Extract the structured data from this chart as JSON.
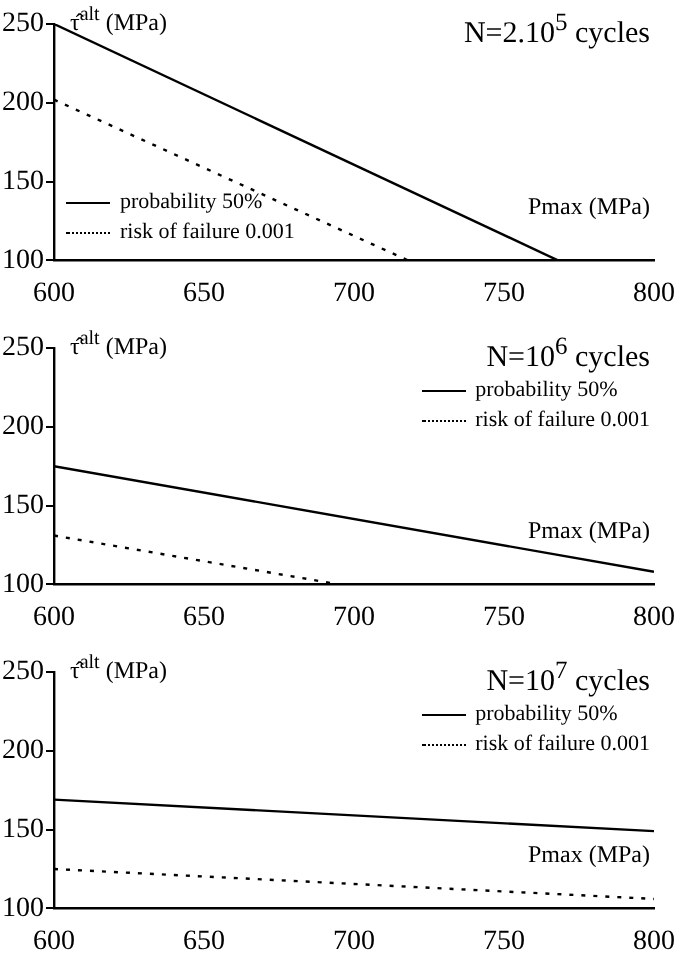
{
  "chart_data": [
    {
      "type": "line",
      "title": "N=2.10$^{5}$ cycles",
      "ylabel": "τ̂$^{alt}$ (MPa)",
      "xlabel": "Pmax (MPa)",
      "xlim": [
        600,
        800
      ],
      "xticks": [
        600,
        650,
        700,
        750,
        800
      ],
      "ylim": [
        100,
        250
      ],
      "yticks": [
        100,
        150,
        200,
        250
      ],
      "legend": "bottom left",
      "marker": "none",
      "series": [
        {
          "name": "probability 50%",
          "color": "#000000",
          "line_style": "solid",
          "x": [
            600,
            768
          ],
          "values": [
            250,
            100
          ]
        },
        {
          "name": "risk of failure 0.001",
          "color": "#000000",
          "line_style": "dotted",
          "x": [
            600,
            718
          ],
          "values": [
            202,
            100
          ]
        }
      ]
    },
    {
      "type": "line",
      "title": "N=10$^{6}$ cycles",
      "ylabel": "τ̂$^{alt}$ (MPa)",
      "xlabel": "Pmax (MPa)",
      "xlim": [
        600,
        800
      ],
      "xticks": [
        600,
        650,
        700,
        750,
        800
      ],
      "ylim": [
        100,
        250
      ],
      "yticks": [
        100,
        150,
        200,
        250
      ],
      "legend": "top right",
      "marker": "none",
      "series": [
        {
          "name": "probability 50%",
          "color": "#000000",
          "line_style": "solid",
          "x": [
            600,
            800
          ],
          "values": [
            175,
            108
          ]
        },
        {
          "name": "risk of failure 0.001",
          "color": "#000000",
          "line_style": "dotted",
          "x": [
            600,
            695
          ],
          "values": [
            131,
            100
          ]
        }
      ]
    },
    {
      "type": "line",
      "title": "N=10$^{7}$ cycles",
      "ylabel": "τ̂$^{alt}$ (MPa)",
      "xlabel": "Pmax (MPa)",
      "xlim": [
        600,
        800
      ],
      "xticks": [
        600,
        650,
        700,
        750,
        800
      ],
      "ylim": [
        100,
        250
      ],
      "yticks": [
        100,
        150,
        200,
        250
      ],
      "legend": "top right",
      "marker": "none",
      "series": [
        {
          "name": "probability 50%",
          "color": "#000000",
          "line_style": "solid",
          "x": [
            600,
            800
          ],
          "values": [
            169,
            149
          ]
        },
        {
          "name": "risk of failure 0.001",
          "color": "#000000",
          "line_style": "dotted",
          "x": [
            600,
            800
          ],
          "values": [
            125,
            106
          ]
        }
      ]
    }
  ]
}
